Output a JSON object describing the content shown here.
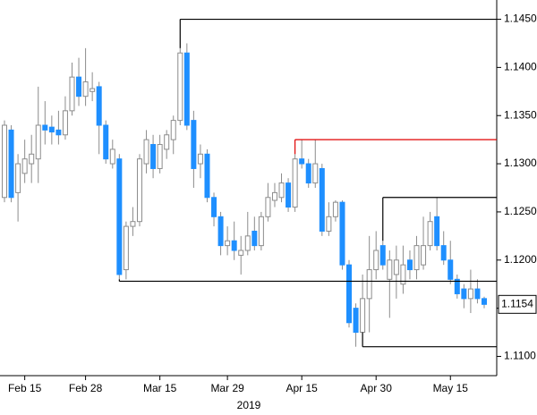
{
  "chart_data": {
    "type": "candlestick",
    "categories": [
      null,
      null,
      null,
      "Feb 15",
      null,
      null,
      null,
      null,
      null,
      null,
      null,
      null,
      "Feb 28",
      null,
      null,
      null,
      null,
      null,
      null,
      null,
      null,
      null,
      null,
      "Mar 15",
      null,
      null,
      null,
      null,
      null,
      null,
      null,
      null,
      null,
      "Mar 29",
      null,
      null,
      null,
      null,
      null,
      null,
      null,
      null,
      null,
      null,
      "Apr 15",
      null,
      null,
      null,
      null,
      null,
      null,
      null,
      null,
      null,
      null,
      "Apr 30",
      null,
      null,
      null,
      null,
      null,
      null,
      null,
      null,
      null,
      null,
      "May 15",
      null,
      null,
      null,
      null,
      null
    ],
    "x_axis_label": "2019",
    "series": [
      {
        "open": [
          1.1265,
          1.1335,
          1.127,
          1.129,
          1.13,
          1.1305,
          1.134,
          1.1338,
          1.1335,
          1.133,
          1.1355,
          1.139,
          1.137,
          1.1375,
          1.138,
          1.134,
          1.13,
          1.1305,
          1.119,
          1.1235,
          1.124,
          1.13,
          1.132,
          1.1295,
          1.1315,
          1.1325,
          1.1345,
          1.1415,
          1.1345,
          1.13,
          1.131,
          1.1265,
          1.1245,
          1.1215,
          1.122,
          1.1205,
          1.121,
          1.123,
          1.1215,
          1.1245,
          1.1262,
          1.1265,
          1.128,
          1.1255,
          1.1305,
          1.13,
          1.128,
          1.1295,
          1.123,
          1.1245,
          1.126,
          1.1195,
          1.115,
          1.1125,
          1.116,
          1.119,
          1.1215,
          1.118,
          1.1185,
          1.1175,
          1.12,
          1.119,
          1.1195,
          1.1215,
          1.1245,
          1.1215,
          1.12,
          1.118,
          1.117,
          1.116,
          1.117,
          1.116
        ],
        "high": [
          1.1345,
          1.134,
          1.131,
          1.1325,
          1.133,
          1.138,
          1.1365,
          1.135,
          1.1355,
          1.137,
          1.1405,
          1.141,
          1.142,
          1.1395,
          1.1385,
          1.1345,
          1.1325,
          1.131,
          1.124,
          1.1255,
          1.131,
          1.1335,
          1.133,
          1.133,
          1.1335,
          1.135,
          1.142,
          1.1425,
          1.1355,
          1.132,
          1.1315,
          1.127,
          1.125,
          1.1235,
          1.124,
          1.1225,
          1.125,
          1.1245,
          1.125,
          1.128,
          1.128,
          1.129,
          1.1285,
          1.131,
          1.1325,
          1.1305,
          1.1325,
          1.13,
          1.126,
          1.1262,
          1.1262,
          1.12,
          1.1155,
          1.1185,
          1.1225,
          1.123,
          1.122,
          1.121,
          1.1215,
          1.1215,
          1.121,
          1.1225,
          1.1245,
          1.125,
          1.1265,
          1.123,
          1.122,
          1.1185,
          1.1175,
          1.119,
          1.118,
          1.1162
        ],
        "low": [
          1.126,
          1.126,
          1.124,
          1.128,
          1.128,
          1.128,
          1.132,
          1.132,
          1.132,
          1.1325,
          1.135,
          1.136,
          1.136,
          1.1365,
          1.131,
          1.13,
          1.1295,
          1.118,
          1.118,
          1.1225,
          1.1235,
          1.129,
          1.1285,
          1.129,
          1.1305,
          1.131,
          1.134,
          1.1335,
          1.1275,
          1.1285,
          1.126,
          1.1235,
          1.1205,
          1.1205,
          1.12,
          1.1185,
          1.1205,
          1.121,
          1.121,
          1.124,
          1.1255,
          1.126,
          1.125,
          1.125,
          1.1295,
          1.1275,
          1.1275,
          1.1225,
          1.1225,
          1.124,
          1.119,
          1.113,
          1.111,
          1.1125,
          1.1125,
          1.118,
          1.119,
          1.114,
          1.116,
          1.1165,
          1.118,
          1.118,
          1.119,
          1.121,
          1.121,
          1.1195,
          1.1175,
          1.116,
          1.115,
          1.1145,
          1.1155,
          1.115
        ],
        "close": [
          1.134,
          1.1265,
          1.13,
          1.1305,
          1.131,
          1.134,
          1.1335,
          1.1333,
          1.133,
          1.1355,
          1.139,
          1.137,
          1.1385,
          1.1378,
          1.134,
          1.1305,
          1.1315,
          1.1185,
          1.1235,
          1.124,
          1.1305,
          1.1325,
          1.1295,
          1.132,
          1.133,
          1.1345,
          1.1415,
          1.134,
          1.1295,
          1.131,
          1.1265,
          1.1245,
          1.1215,
          1.122,
          1.121,
          1.121,
          1.1225,
          1.1215,
          1.1245,
          1.1265,
          1.127,
          1.128,
          1.1255,
          1.1305,
          1.13,
          1.128,
          1.13,
          1.123,
          1.1245,
          1.126,
          1.1195,
          1.1135,
          1.1125,
          1.116,
          1.119,
          1.121,
          1.1195,
          1.12,
          1.12,
          1.1195,
          1.119,
          1.1215,
          1.1215,
          1.124,
          1.1215,
          1.12,
          1.118,
          1.1165,
          1.116,
          1.117,
          1.116,
          1.1154
        ]
      }
    ],
    "up_color": "#ffffff",
    "up_edge": "#8c8c8c",
    "down_color": "#1e8fff",
    "wick_color": "#8c8c8c",
    "levels": [
      {
        "value": 1.145,
        "from": 26,
        "color": "#000000"
      },
      {
        "value": 1.1325,
        "from": 43,
        "color": "#e00000"
      },
      {
        "value": 1.1265,
        "from": 56,
        "color": "#000000"
      },
      {
        "value": 1.1178,
        "from": 17,
        "color": "#000000"
      },
      {
        "value": 1.111,
        "from": 53,
        "color": "#000000"
      }
    ],
    "last_price": {
      "value": 1.1154,
      "label": "1.1154"
    },
    "ylim": [
      1.108,
      1.147
    ],
    "yticks": [
      {
        "value": 1.11,
        "label": "1.1100"
      },
      {
        "value": 1.115,
        "label": "1.1150"
      },
      {
        "value": 1.12,
        "label": "1.1200"
      },
      {
        "value": 1.125,
        "label": "1.1250"
      },
      {
        "value": 1.13,
        "label": "1.1300"
      },
      {
        "value": 1.135,
        "label": "1.1350"
      },
      {
        "value": 1.14,
        "label": "1.1400"
      },
      {
        "value": 1.145,
        "label": "1.1450"
      }
    ]
  }
}
